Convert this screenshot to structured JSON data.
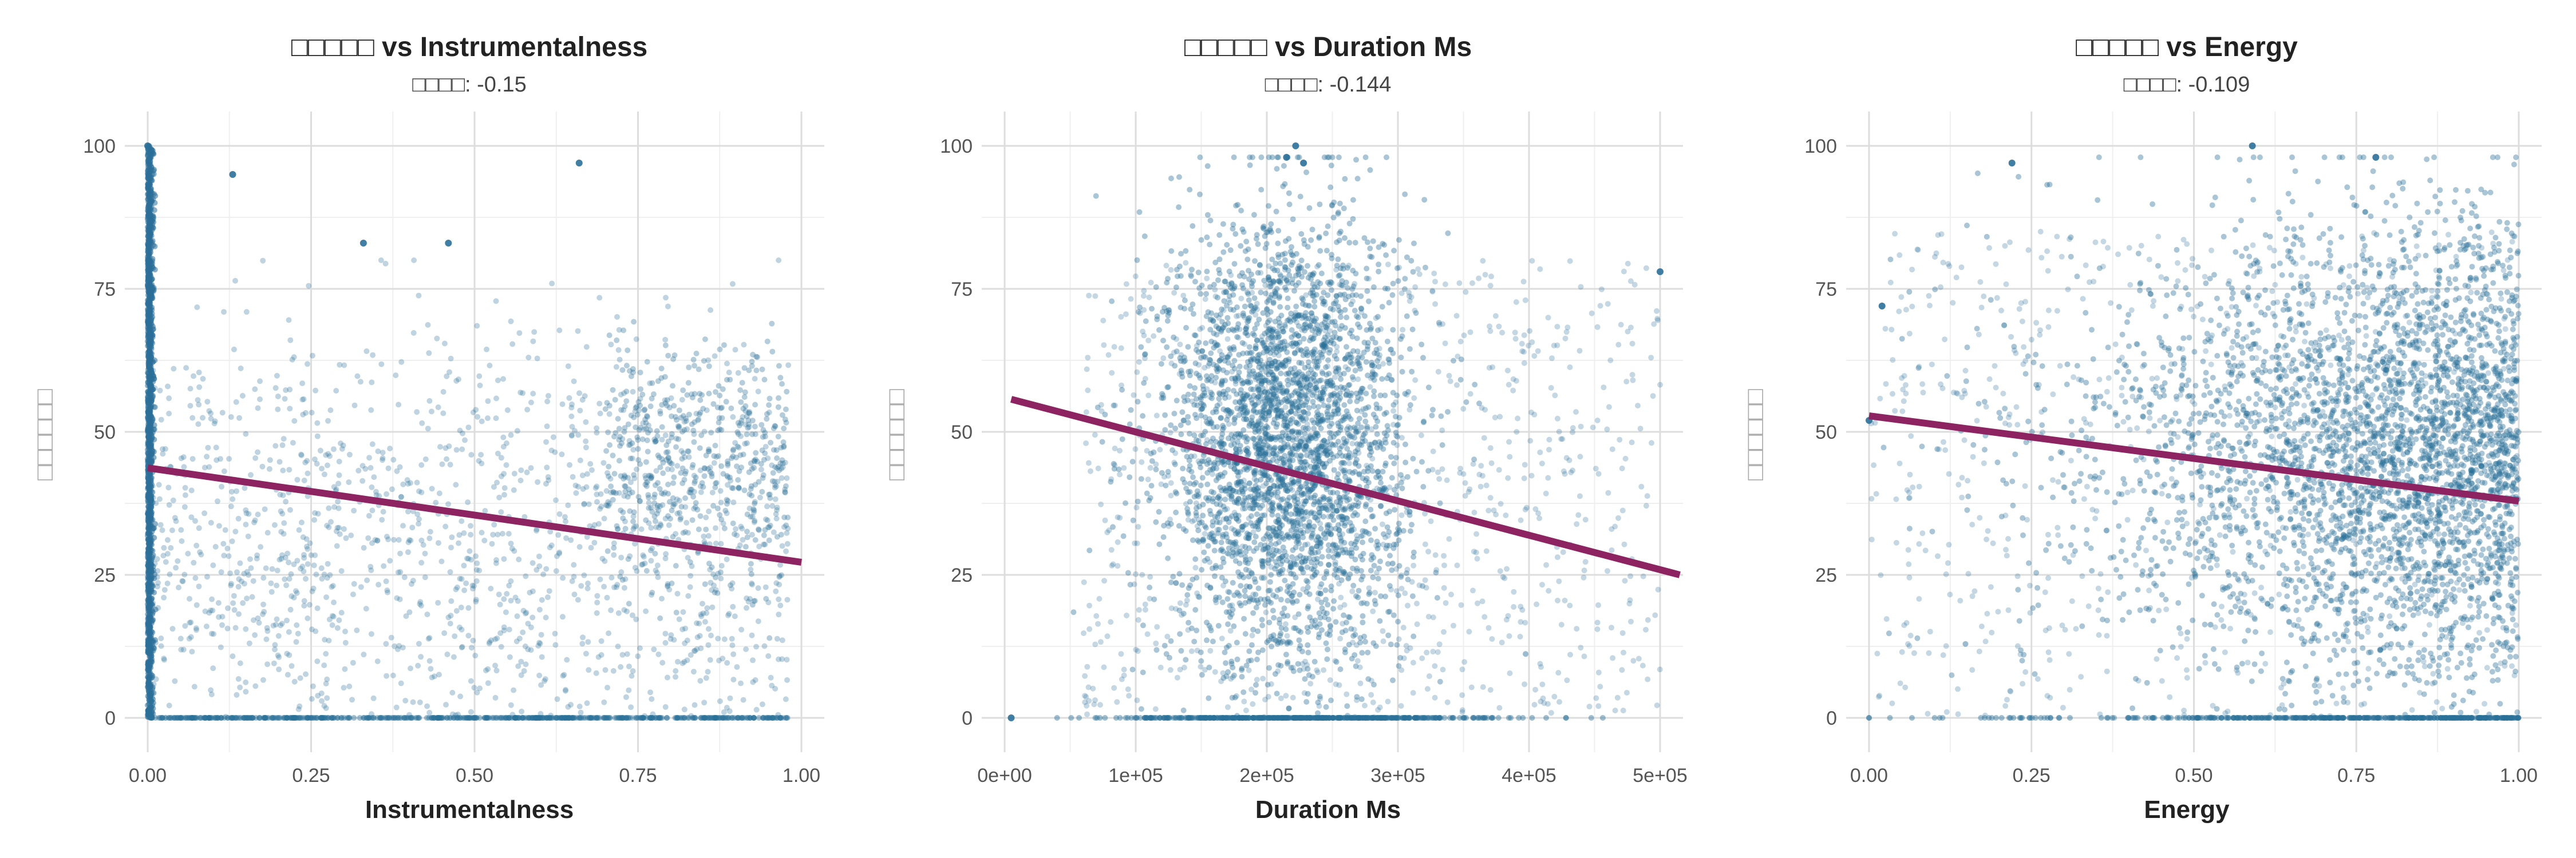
{
  "colors": {
    "points": "#2b7099",
    "trend": "#8e2361",
    "grid": "#dddddd",
    "background": "#ffffff"
  },
  "chart_data": [
    {
      "type": "scatter",
      "title": "□□□□□ vs Instrumentalness",
      "subtitle": "□□□□: -0.15",
      "xlabel": "Instrumentalness",
      "ylabel": "□□□□□□",
      "xlim": [
        0,
        1
      ],
      "ylim": [
        0,
        100
      ],
      "xticks": [
        0,
        0.25,
        0.5,
        0.75,
        1.0
      ],
      "xtick_labels": [
        "0.00",
        "0.25",
        "0.50",
        "0.75",
        "1.00"
      ],
      "yticks": [
        0,
        25,
        50,
        75,
        100
      ],
      "ytick_labels": [
        "0",
        "25",
        "50",
        "75",
        "100"
      ],
      "grid": true,
      "trend_line": {
        "x": [
          0,
          1
        ],
        "y": [
          43.7,
          27.2
        ]
      },
      "correlation": -0.15,
      "highlight_points": [
        {
          "x": 0.13,
          "y": 95
        },
        {
          "x": 0.66,
          "y": 97
        },
        {
          "x": 0.0,
          "y": 100
        },
        {
          "x": 0.33,
          "y": 83
        },
        {
          "x": 0.46,
          "y": 83
        }
      ]
    },
    {
      "type": "scatter",
      "title": "□□□□□ vs Duration Ms",
      "subtitle": "□□□□: -0.144",
      "xlabel": "Duration Ms",
      "ylabel": "□□□□□□",
      "xlim": [
        0,
        500000
      ],
      "ylim": [
        0,
        100
      ],
      "xticks": [
        0,
        100000,
        200000,
        300000,
        400000,
        500000
      ],
      "xtick_labels": [
        "0e+00",
        "1e+05",
        "2e+05",
        "3e+05",
        "4e+05",
        "5e+05"
      ],
      "yticks": [
        0,
        25,
        50,
        75,
        100
      ],
      "ytick_labels": [
        "0",
        "25",
        "50",
        "75",
        "100"
      ],
      "grid": true,
      "trend_line": {
        "x": [
          5000,
          515000
        ],
        "y": [
          55.7,
          25.0
        ]
      },
      "correlation": -0.144,
      "highlight_points": [
        {
          "x": 222000,
          "y": 100
        },
        {
          "x": 215000,
          "y": 98
        },
        {
          "x": 228000,
          "y": 97
        },
        {
          "x": 500000,
          "y": 78
        },
        {
          "x": 5000,
          "y": 0
        }
      ]
    },
    {
      "type": "scatter",
      "title": "□□□□□ vs Energy",
      "subtitle": "□□□□: -0.109",
      "xlabel": "Energy",
      "ylabel": "□□□□□□",
      "xlim": [
        0,
        1
      ],
      "ylim": [
        0,
        100
      ],
      "xticks": [
        0,
        0.25,
        0.5,
        0.75,
        1.0
      ],
      "xtick_labels": [
        "0.00",
        "0.25",
        "0.50",
        "0.75",
        "1.00"
      ],
      "yticks": [
        0,
        25,
        50,
        75,
        100
      ],
      "ytick_labels": [
        "0",
        "25",
        "50",
        "75",
        "100"
      ],
      "grid": true,
      "trend_line": {
        "x": [
          0,
          1
        ],
        "y": [
          52.8,
          37.9
        ]
      },
      "correlation": -0.109,
      "highlight_points": [
        {
          "x": 0.59,
          "y": 100
        },
        {
          "x": 0.78,
          "y": 98
        },
        {
          "x": 0.22,
          "y": 97
        },
        {
          "x": 0.02,
          "y": 72
        },
        {
          "x": 0.0,
          "y": 52
        }
      ]
    }
  ]
}
